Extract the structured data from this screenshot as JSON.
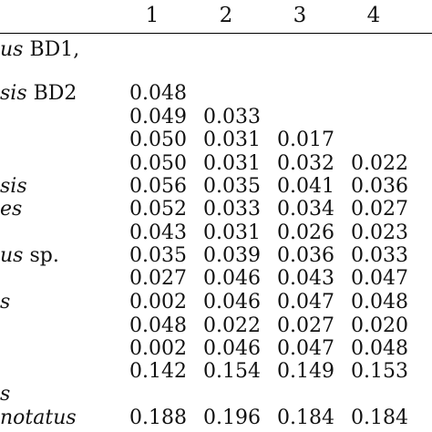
{
  "table": {
    "columns": [
      "1",
      "2",
      "3",
      "4"
    ],
    "row_labels": [
      {
        "italic": "us",
        "plain": " BD1,"
      },
      {
        "italic": "",
        "plain": ""
      },
      {
        "italic": "sis",
        "plain": " BD2"
      },
      {
        "italic": "",
        "plain": ""
      },
      {
        "italic": "",
        "plain": ""
      },
      {
        "italic": "",
        "plain": ""
      },
      {
        "italic": "sis",
        "plain": ""
      },
      {
        "italic": "es",
        "plain": ""
      },
      {
        "italic": "",
        "plain": ""
      },
      {
        "italic": "us",
        "plain": " sp."
      },
      {
        "italic": "",
        "plain": ""
      },
      {
        "italic": "s",
        "plain": ""
      },
      {
        "italic": "",
        "plain": ""
      },
      {
        "italic": "",
        "plain": ""
      },
      {
        "italic": "",
        "plain": ""
      },
      {
        "italic": "s",
        "plain": ""
      },
      {
        "italic": "notatus",
        "plain": ""
      }
    ],
    "rows": [
      [],
      [],
      [
        "0.048"
      ],
      [
        "0.049",
        "0.033"
      ],
      [
        "0.050",
        "0.031",
        "0.017"
      ],
      [
        "0.050",
        "0.031",
        "0.032",
        "0.022"
      ],
      [
        "0.056",
        "0.035",
        "0.041",
        "0.036"
      ],
      [
        "0.052",
        "0.033",
        "0.034",
        "0.027"
      ],
      [
        "0.043",
        "0.031",
        "0.026",
        "0.023"
      ],
      [
        "0.035",
        "0.039",
        "0.036",
        "0.033"
      ],
      [
        "0.027",
        "0.046",
        "0.043",
        "0.047"
      ],
      [
        "0.002",
        "0.046",
        "0.047",
        "0.048"
      ],
      [
        "0.048",
        "0.022",
        "0.027",
        "0.020"
      ],
      [
        "0.002",
        "0.046",
        "0.047",
        "0.048"
      ],
      [
        "0.142",
        "0.154",
        "0.149",
        "0.153"
      ],
      [],
      [
        "0.188",
        "0.196",
        "0.184",
        "0.184"
      ]
    ]
  }
}
